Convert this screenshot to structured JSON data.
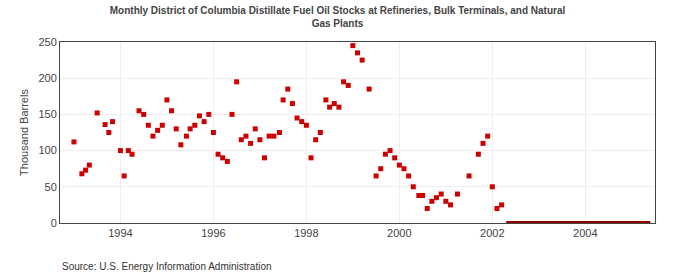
{
  "chart_data": {
    "type": "scatter",
    "title": "Monthly District of Columbia Distillate Fuel Oil Stocks at Refineries, Bulk Terminals, and Natural\nGas Plants",
    "ylabel": "Thousand Barrels",
    "annotations": [
      "Source: U.S. Energy Information Administration"
    ],
    "xlim": [
      1992.7,
      2005.5
    ],
    "xticks": [
      1994,
      1996,
      1998,
      2000,
      2002,
      2004
    ],
    "ylim": [
      0,
      250
    ],
    "yticks": [
      0,
      50,
      100,
      150,
      200,
      250
    ],
    "grid": true,
    "series": [
      {
        "type": "scatter",
        "marker": "square",
        "color": "#CC0000",
        "x": [
          1993.0,
          1993.17,
          1993.25,
          1993.33,
          1993.5,
          1993.67,
          1993.75,
          1993.83,
          1994.0,
          1994.08,
          1994.17,
          1994.25,
          1994.4,
          1994.5,
          1994.6,
          1994.7,
          1994.8,
          1994.9,
          1995.0,
          1995.1,
          1995.2,
          1995.3,
          1995.42,
          1995.5,
          1995.6,
          1995.7,
          1995.8,
          1995.9,
          1996.0,
          1996.1,
          1996.2,
          1996.3,
          1996.4,
          1996.5,
          1996.6,
          1996.7,
          1996.8,
          1996.9,
          1997.0,
          1997.1,
          1997.2,
          1997.3,
          1997.42,
          1997.5,
          1997.6,
          1997.7,
          1997.8,
          1997.9,
          1998.0,
          1998.1,
          1998.2,
          1998.3,
          1998.42,
          1998.5,
          1998.6,
          1998.7,
          1998.8,
          1998.9,
          1999.0,
          1999.1,
          1999.2,
          1999.35,
          1999.5,
          1999.6,
          1999.7,
          1999.8,
          1999.9,
          2000.0,
          2000.1,
          2000.2,
          2000.3,
          2000.42,
          2000.5,
          2000.6,
          2000.7,
          2000.8,
          2000.9,
          2001.0,
          2001.1,
          2001.25,
          2001.5,
          2001.7,
          2001.8,
          2001.9,
          2002.0,
          2002.1,
          2002.2
        ],
        "values": [
          112,
          68,
          73,
          80,
          152,
          136,
          125,
          140,
          100,
          65,
          100,
          95,
          155,
          150,
          135,
          120,
          128,
          135,
          170,
          155,
          130,
          108,
          120,
          130,
          135,
          148,
          140,
          150,
          125,
          95,
          90,
          85,
          150,
          195,
          115,
          120,
          110,
          130,
          115,
          90,
          120,
          120,
          125,
          170,
          185,
          165,
          145,
          140,
          135,
          90,
          115,
          125,
          170,
          160,
          165,
          160,
          195,
          190,
          245,
          235,
          225,
          185,
          65,
          75,
          95,
          100,
          90,
          80,
          75,
          65,
          50,
          38,
          38,
          20,
          30,
          35,
          40,
          30,
          25,
          40,
          65,
          95,
          110,
          120,
          50,
          20,
          25
        ]
      },
      {
        "type": "line",
        "line_style": "solid",
        "color": "#8B0000",
        "x": [
          2002.3,
          2005.4
        ],
        "values": [
          0,
          0
        ]
      }
    ]
  }
}
